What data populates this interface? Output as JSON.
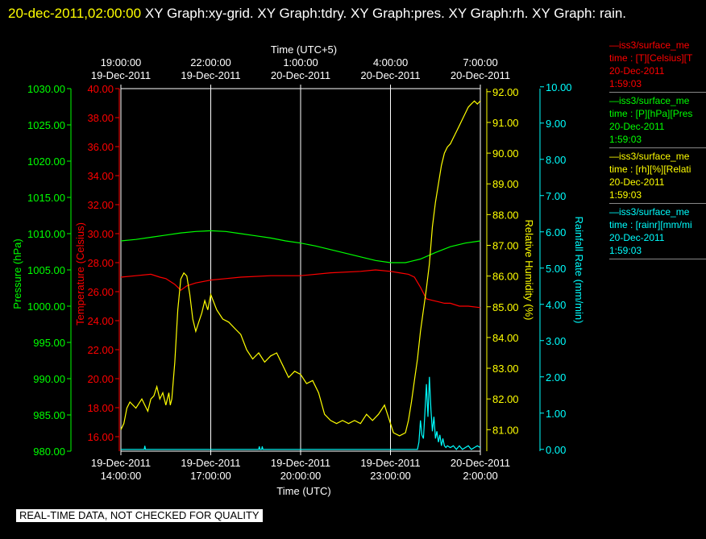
{
  "window": {
    "title_date": "20-dec-2011,02:00:00",
    "title_rest": "XY Graph:xy-grid.  XY Graph:tdry.  XY Graph:pres.  XY Graph:rh.  XY Graph: rain."
  },
  "notice": "REAL-TIME DATA, NOT CHECKED FOR QUALITY",
  "legend": [
    {
      "header": "—iss3/surface_me",
      "line": "time : [T][Celsius][T",
      "date": "20-Dec-2011",
      "time": "1:59:03",
      "color": "#ff0000"
    },
    {
      "header": "—iss3/surface_me",
      "line": "time : [P][hPa][Pres",
      "date": "20-Dec-2011",
      "time": "1:59:03",
      "color": "#00ff00"
    },
    {
      "header": "—iss3/surface_me",
      "line": "time : [rh][%][Relati",
      "date": "20-Dec-2011",
      "time": "1:59:03",
      "color": "#ffff00"
    },
    {
      "header": "—iss3/surface_me",
      "line": "time : [rainr][mm/mi",
      "date": "20-Dec-2011",
      "time": "1:59:03",
      "color": "#00ffff"
    }
  ],
  "chart_data": {
    "type": "line",
    "x_unit": "hours from 19-Dec-2011 14:00 UTC",
    "xlim": [
      0,
      12
    ],
    "top_axis": {
      "label": "Time (UTC+5)",
      "ticks": [
        {
          "x": 0,
          "time": "19:00:00",
          "date": "19-Dec-2011"
        },
        {
          "x": 3,
          "time": "22:00:00",
          "date": "19-Dec-2011"
        },
        {
          "x": 6,
          "time": "1:00:00",
          "date": "20-Dec-2011"
        },
        {
          "x": 9,
          "time": "4:00:00",
          "date": "20-Dec-2011"
        },
        {
          "x": 12,
          "time": "7:00:00",
          "date": "20-Dec-2011"
        }
      ]
    },
    "bottom_axis": {
      "label": "Time (UTC)",
      "ticks": [
        {
          "x": 0,
          "date": "19-Dec-2011",
          "time": "14:00:00"
        },
        {
          "x": 3,
          "date": "19-Dec-2011",
          "time": "17:00:00"
        },
        {
          "x": 6,
          "date": "19-Dec-2011",
          "time": "20:00:00"
        },
        {
          "x": 9,
          "date": "19-Dec-2011",
          "time": "23:00:00"
        },
        {
          "x": 12,
          "date": "20-Dec-2011",
          "time": "2:00:00"
        }
      ]
    },
    "axes": {
      "pressure": {
        "label": "Pressure (hPa)",
        "color": "#00ff00",
        "ylim": [
          980,
          1030
        ],
        "ticks": [
          "980.00",
          "985.00",
          "990.00",
          "995.00",
          "1000.00",
          "1005.00",
          "1010.00",
          "1015.00",
          "1020.00",
          "1025.00",
          "1030.00"
        ]
      },
      "temperature": {
        "label": "Temperature (Celsius)",
        "color": "#ff0000",
        "ylim": [
          15,
          40
        ],
        "ticks": [
          "16.00",
          "18.00",
          "20.00",
          "22.00",
          "24.00",
          "26.00",
          "28.00",
          "30.00",
          "32.00",
          "34.00",
          "36.00",
          "38.00",
          "40.00"
        ]
      },
      "humidity": {
        "label": "Relative Humidity (%)",
        "color": "#ffff00",
        "ylim": [
          80.3,
          92.1
        ],
        "ticks": [
          "81.00",
          "82.00",
          "83.00",
          "84.00",
          "85.00",
          "86.00",
          "87.00",
          "88.00",
          "89.00",
          "90.00",
          "91.00",
          "92.00"
        ]
      },
      "rain": {
        "label": "Rainfall Rate (mm/min)",
        "color": "#00ffff",
        "ylim": [
          -0.05,
          9.95
        ],
        "ticks": [
          "0.00",
          "1.00",
          "2.00",
          "3.00",
          "4.00",
          "5.00",
          "6.00",
          "7.00",
          "8.00",
          "9.00",
          "10.00"
        ]
      }
    },
    "series": [
      {
        "name": "Temperature",
        "axis": "temperature",
        "color": "#ff0000",
        "x": [
          0,
          0.5,
          1,
          1.3,
          1.5,
          1.8,
          2.0,
          2.2,
          2.5,
          3,
          3.5,
          4,
          5,
          6,
          7,
          8,
          8.5,
          9,
          9.3,
          9.6,
          9.8,
          10,
          10.2,
          10.4,
          10.6,
          10.8,
          11,
          11.3,
          11.6,
          12
        ],
        "y": [
          27.0,
          27.1,
          27.2,
          27.0,
          26.9,
          26.5,
          26.1,
          26.4,
          26.6,
          26.8,
          26.9,
          27.0,
          27.1,
          27.1,
          27.3,
          27.4,
          27.5,
          27.4,
          27.3,
          27.2,
          27.0,
          26.3,
          25.5,
          25.4,
          25.3,
          25.2,
          25.2,
          25.0,
          25.0,
          24.9
        ]
      },
      {
        "name": "Pressure",
        "axis": "pressure",
        "color": "#00ff00",
        "x": [
          0,
          0.5,
          1,
          1.5,
          2,
          2.5,
          3,
          3.5,
          4,
          4.5,
          5,
          5.5,
          6,
          6.5,
          7,
          7.5,
          8,
          8.5,
          9,
          9.5,
          10,
          10.5,
          11,
          11.5,
          12
        ],
        "y": [
          1009.0,
          1009.2,
          1009.5,
          1009.8,
          1010.1,
          1010.3,
          1010.4,
          1010.3,
          1010.0,
          1009.7,
          1009.4,
          1009.0,
          1008.7,
          1008.3,
          1007.8,
          1007.3,
          1006.8,
          1006.3,
          1006.0,
          1006.0,
          1006.5,
          1007.4,
          1008.2,
          1008.7,
          1009.0
        ]
      },
      {
        "name": "Relative Humidity",
        "axis": "humidity",
        "color": "#ffff00",
        "x": [
          0,
          0.1,
          0.2,
          0.3,
          0.5,
          0.7,
          0.9,
          1.0,
          1.1,
          1.2,
          1.3,
          1.4,
          1.5,
          1.6,
          1.65,
          1.7,
          1.8,
          1.9,
          2.0,
          2.1,
          2.2,
          2.3,
          2.4,
          2.5,
          2.6,
          2.7,
          2.8,
          2.9,
          3.0,
          3.2,
          3.4,
          3.6,
          3.8,
          4.0,
          4.2,
          4.4,
          4.6,
          4.8,
          5.0,
          5.2,
          5.4,
          5.6,
          5.8,
          6.0,
          6.2,
          6.4,
          6.6,
          6.8,
          7.0,
          7.2,
          7.4,
          7.6,
          7.8,
          8.0,
          8.2,
          8.4,
          8.6,
          8.8,
          9.0,
          9.1,
          9.3,
          9.5,
          9.6,
          9.7,
          9.8,
          9.9,
          10.0,
          10.1,
          10.2,
          10.3,
          10.4,
          10.5,
          10.6,
          10.7,
          10.8,
          10.9,
          11.0,
          11.1,
          11.2,
          11.3,
          11.4,
          11.5,
          11.6,
          11.7,
          11.8,
          11.9,
          12.0
        ],
        "y": [
          81.0,
          81.2,
          81.7,
          81.9,
          81.7,
          82.0,
          81.6,
          82.0,
          82.1,
          82.4,
          82.0,
          82.2,
          81.8,
          82.2,
          81.8,
          82.0,
          83.2,
          84.9,
          85.9,
          86.1,
          86.0,
          85.4,
          84.6,
          84.2,
          84.5,
          84.8,
          85.2,
          84.9,
          85.4,
          84.9,
          84.6,
          84.5,
          84.3,
          84.1,
          83.6,
          83.3,
          83.5,
          83.2,
          83.4,
          83.5,
          83.1,
          82.7,
          82.9,
          82.8,
          82.5,
          82.6,
          82.2,
          81.5,
          81.3,
          81.2,
          81.3,
          81.2,
          81.3,
          81.2,
          81.5,
          81.3,
          81.5,
          81.8,
          81.2,
          80.9,
          80.8,
          80.9,
          81.3,
          81.9,
          82.6,
          83.3,
          84.2,
          84.9,
          85.6,
          86.4,
          87.6,
          88.4,
          89.0,
          89.6,
          90.0,
          90.2,
          90.3,
          90.5,
          90.7,
          90.9,
          91.1,
          91.3,
          91.5,
          91.6,
          91.7,
          91.6,
          91.7
        ]
      },
      {
        "name": "Rainfall Rate",
        "axis": "rain",
        "color": "#00ffff",
        "x": [
          0,
          0.78,
          0.8,
          0.82,
          4.6,
          4.62,
          4.64,
          4.7,
          4.72,
          4.74,
          9.0,
          9.9,
          9.95,
          10.0,
          10.05,
          10.1,
          10.15,
          10.2,
          10.25,
          10.3,
          10.35,
          10.4,
          10.45,
          10.5,
          10.55,
          10.6,
          10.65,
          10.7,
          10.75,
          10.8,
          10.85,
          10.9,
          11.0,
          11.1,
          11.2,
          11.3,
          11.4,
          11.5,
          11.6,
          11.7,
          11.8,
          11.9,
          12.0
        ],
        "y": [
          0,
          0,
          0.1,
          0,
          0,
          0.08,
          0,
          0,
          0.08,
          0,
          0,
          0,
          0.2,
          0.8,
          0.4,
          0.3,
          1.0,
          1.8,
          0.9,
          2.0,
          1.1,
          0.5,
          0.9,
          0.3,
          0.5,
          0.2,
          0.4,
          0.1,
          0.3,
          0.1,
          0.05,
          0.1,
          0.05,
          0.1,
          0,
          0.1,
          0,
          0.05,
          0.1,
          0,
          0.05,
          0.1,
          0.05
        ]
      }
    ]
  }
}
